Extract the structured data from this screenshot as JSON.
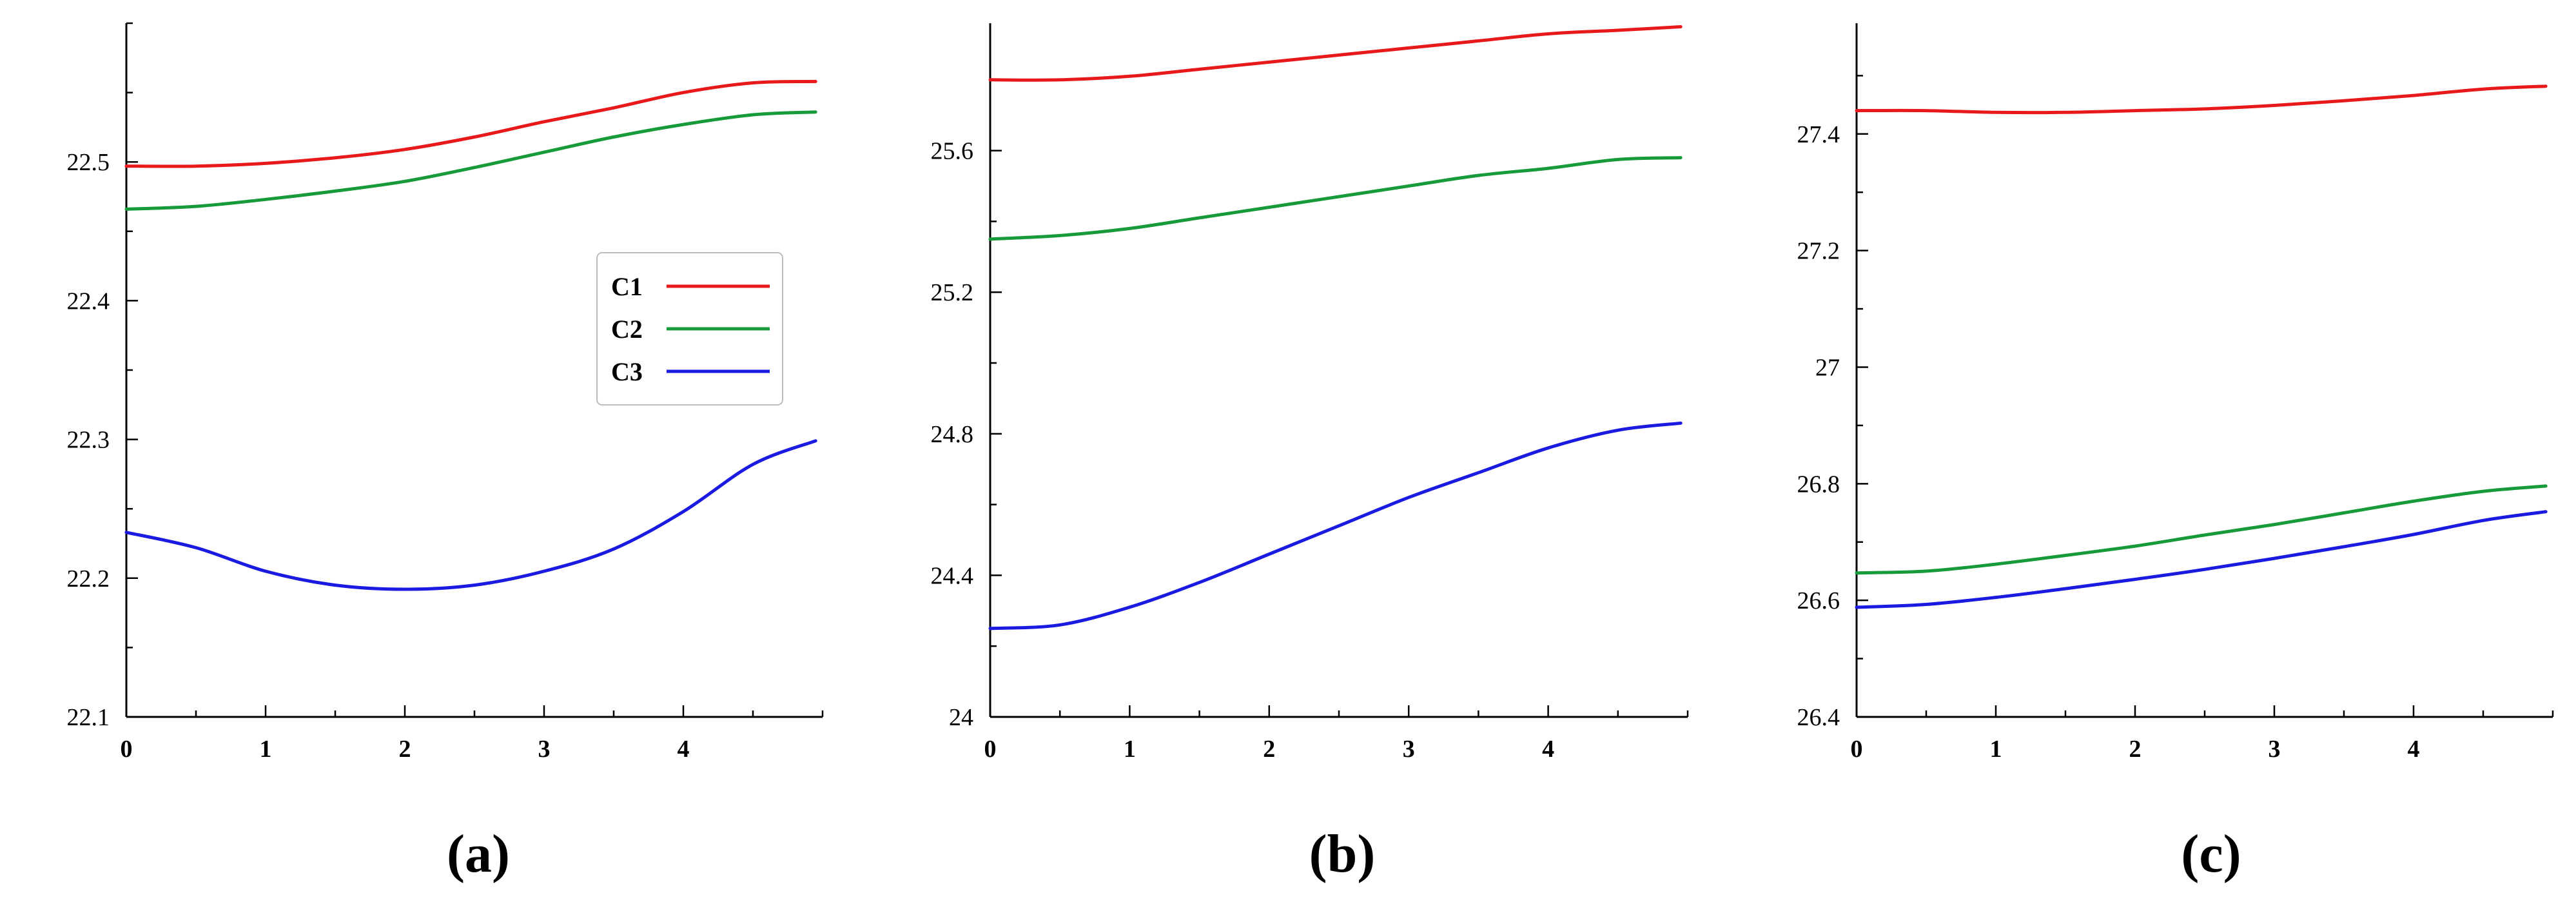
{
  "chart_data": [
    {
      "type": "line",
      "panel_label": "(a)",
      "xlim": [
        0,
        5
      ],
      "ylim": [
        22.1,
        22.6
      ],
      "xticks": [
        "0",
        "1",
        "2",
        "3",
        "4"
      ],
      "yticks": [
        "22.1",
        "22.2",
        "22.3",
        "22.4",
        "22.5"
      ],
      "grid": false,
      "legend_position": "right-center",
      "x": [
        0,
        0.5,
        1,
        1.5,
        2,
        2.5,
        3,
        3.5,
        4,
        4.5,
        4.95
      ],
      "series": [
        {
          "name": "C1",
          "color": "#e8191b",
          "values": [
            22.497,
            22.497,
            22.499,
            22.503,
            22.509,
            22.518,
            22.529,
            22.539,
            22.55,
            22.557,
            22.558
          ]
        },
        {
          "name": "C2",
          "color": "#169a3a",
          "values": [
            22.466,
            22.468,
            22.473,
            22.479,
            22.486,
            22.496,
            22.507,
            22.518,
            22.527,
            22.534,
            22.536
          ]
        },
        {
          "name": "C3",
          "color": "#1a1ae0",
          "values": [
            22.233,
            22.222,
            22.205,
            22.195,
            22.192,
            22.195,
            22.205,
            22.221,
            22.248,
            22.282,
            22.299
          ]
        }
      ]
    },
    {
      "type": "line",
      "panel_label": "(b)",
      "xlim": [
        0,
        5
      ],
      "ylim": [
        24.0,
        25.96
      ],
      "xticks": [
        "0",
        "1",
        "2",
        "3",
        "4"
      ],
      "yticks": [
        "24",
        "24.4",
        "24.8",
        "25.2",
        "25.6"
      ],
      "grid": false,
      "x": [
        0,
        0.5,
        1,
        1.5,
        2,
        2.5,
        3,
        3.5,
        4,
        4.5,
        4.95
      ],
      "series": [
        {
          "name": "C1",
          "color": "#e8191b",
          "values": [
            25.8,
            25.8,
            25.81,
            25.83,
            25.85,
            25.87,
            25.89,
            25.91,
            25.93,
            25.94,
            25.95
          ]
        },
        {
          "name": "C2",
          "color": "#169a3a",
          "values": [
            25.35,
            25.36,
            25.38,
            25.41,
            25.44,
            25.47,
            25.5,
            25.53,
            25.55,
            25.575,
            25.58
          ]
        },
        {
          "name": "C3",
          "color": "#1a1ae0",
          "values": [
            24.25,
            24.26,
            24.31,
            24.38,
            24.46,
            24.54,
            24.62,
            24.69,
            24.76,
            24.81,
            24.83
          ]
        }
      ]
    },
    {
      "type": "line",
      "panel_label": "(c)",
      "xlim": [
        0,
        5
      ],
      "ylim": [
        26.4,
        27.59
      ],
      "xticks": [
        "0",
        "1",
        "2",
        "3",
        "4"
      ],
      "yticks": [
        "26.4",
        "26.6",
        "26.8",
        "27",
        "27.2",
        "27.4"
      ],
      "grid": false,
      "x": [
        0,
        0.5,
        1,
        1.5,
        2,
        2.5,
        3,
        3.5,
        4,
        4.5,
        4.95
      ],
      "series": [
        {
          "name": "C1",
          "color": "#e8191b",
          "values": [
            27.44,
            27.44,
            27.437,
            27.437,
            27.44,
            27.443,
            27.449,
            27.457,
            27.466,
            27.477,
            27.482
          ]
        },
        {
          "name": "C2",
          "color": "#169a3a",
          "values": [
            26.647,
            26.65,
            26.662,
            26.677,
            26.693,
            26.712,
            26.73,
            26.75,
            26.77,
            26.787,
            26.796
          ]
        },
        {
          "name": "C3",
          "color": "#1a1ae0",
          "values": [
            26.588,
            26.593,
            26.605,
            26.62,
            26.636,
            26.653,
            26.672,
            26.692,
            26.713,
            26.737,
            26.752
          ]
        }
      ]
    }
  ]
}
